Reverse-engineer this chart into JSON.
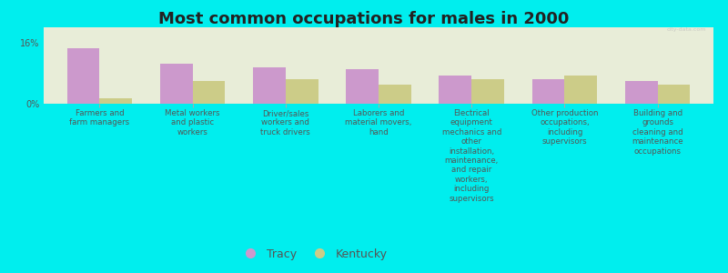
{
  "title": "Most common occupations for males in 2000",
  "background_color": "#00EEEE",
  "plot_bg_color": "#E8EDD8",
  "categories": [
    "Farmers and\nfarm managers",
    "Metal workers\nand plastic\nworkers",
    "Driver/sales\nworkers and\ntruck drivers",
    "Laborers and\nmaterial movers,\nhand",
    "Electrical\nequipment\nmechanics and\nother\ninstallation,\nmaintenance,\nand repair\nworkers,\nincluding\nsupervisors",
    "Other production\noccupations,\nincluding\nsupervisors",
    "Building and\ngrounds\ncleaning and\nmaintenance\noccupations"
  ],
  "tracy_values": [
    14.5,
    10.5,
    9.5,
    9.0,
    7.5,
    6.5,
    6.0
  ],
  "kentucky_values": [
    1.5,
    6.0,
    6.5,
    5.0,
    6.5,
    7.5,
    5.0
  ],
  "tracy_color": "#CC99CC",
  "kentucky_color": "#CCCC88",
  "ylim": [
    0,
    20
  ],
  "yticks": [
    0,
    16
  ],
  "ytick_labels": [
    "0%",
    "16%"
  ],
  "bar_width": 0.35,
  "legend_tracy": "Tracy",
  "legend_kentucky": "Kentucky"
}
